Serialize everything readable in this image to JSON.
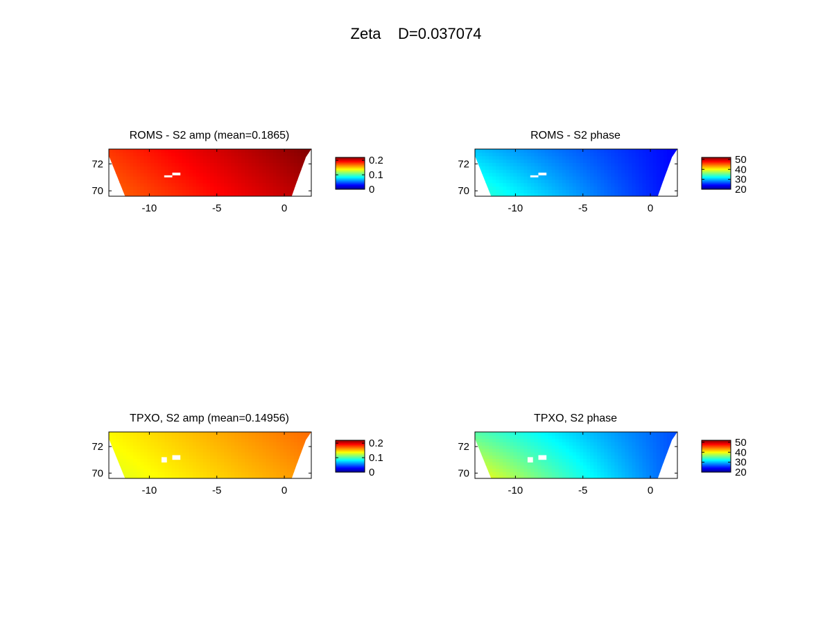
{
  "figure": {
    "title": "Zeta    D=0.037074"
  },
  "chart_data": [
    {
      "type": "heatmap",
      "title": "ROMS - S2 amp (mean=0.1865)",
      "xticks": [
        "-10",
        "-5",
        "0"
      ],
      "yticks": [
        "72",
        "70"
      ],
      "xlim": [
        -13,
        2
      ],
      "ylim": [
        69.6,
        73.1
      ],
      "colorbar": {
        "ticks": [
          "0.2",
          "0.1",
          "0"
        ],
        "range": [
          0,
          0.22
        ],
        "colormap": "jet"
      },
      "field": {
        "mean": 0.1865,
        "min_value": 0.17,
        "max_value": 0.22,
        "increases_toward": "east/north"
      }
    },
    {
      "type": "heatmap",
      "title": "ROMS - S2 phase",
      "xticks": [
        "-10",
        "-5",
        "0"
      ],
      "yticks": [
        "72",
        "70"
      ],
      "xlim": [
        -13,
        2
      ],
      "ylim": [
        69.6,
        73.1
      ],
      "colorbar": {
        "ticks": [
          "50",
          "40",
          "30",
          "20"
        ],
        "range": [
          20,
          52
        ],
        "colormap": "jet"
      },
      "field": {
        "min_value": 20,
        "max_value": 34,
        "increases_toward": "west"
      }
    },
    {
      "type": "heatmap",
      "title": "TPXO, S2 amp (mean=0.14956)",
      "xticks": [
        "-10",
        "-5",
        "0"
      ],
      "yticks": [
        "72",
        "70"
      ],
      "xlim": [
        -13,
        2
      ],
      "ylim": [
        69.6,
        73.1
      ],
      "colorbar": {
        "ticks": [
          "0.2",
          "0.1",
          "0"
        ],
        "range": [
          0,
          0.22
        ],
        "colormap": "jet"
      },
      "field": {
        "mean": 0.14956,
        "min_value": 0.13,
        "max_value": 0.17,
        "increases_toward": "east/north"
      }
    },
    {
      "type": "heatmap",
      "title": "TPXO, S2 phase",
      "xticks": [
        "-10",
        "-5",
        "0"
      ],
      "yticks": [
        "72",
        "70"
      ],
      "xlim": [
        -13,
        2
      ],
      "ylim": [
        69.6,
        73.1
      ],
      "colorbar": {
        "ticks": [
          "50",
          "40",
          "30",
          "20"
        ],
        "range": [
          20,
          52
        ],
        "colormap": "jet"
      },
      "field": {
        "min_value": 21,
        "max_value": 40,
        "increases_toward": "west"
      }
    }
  ]
}
